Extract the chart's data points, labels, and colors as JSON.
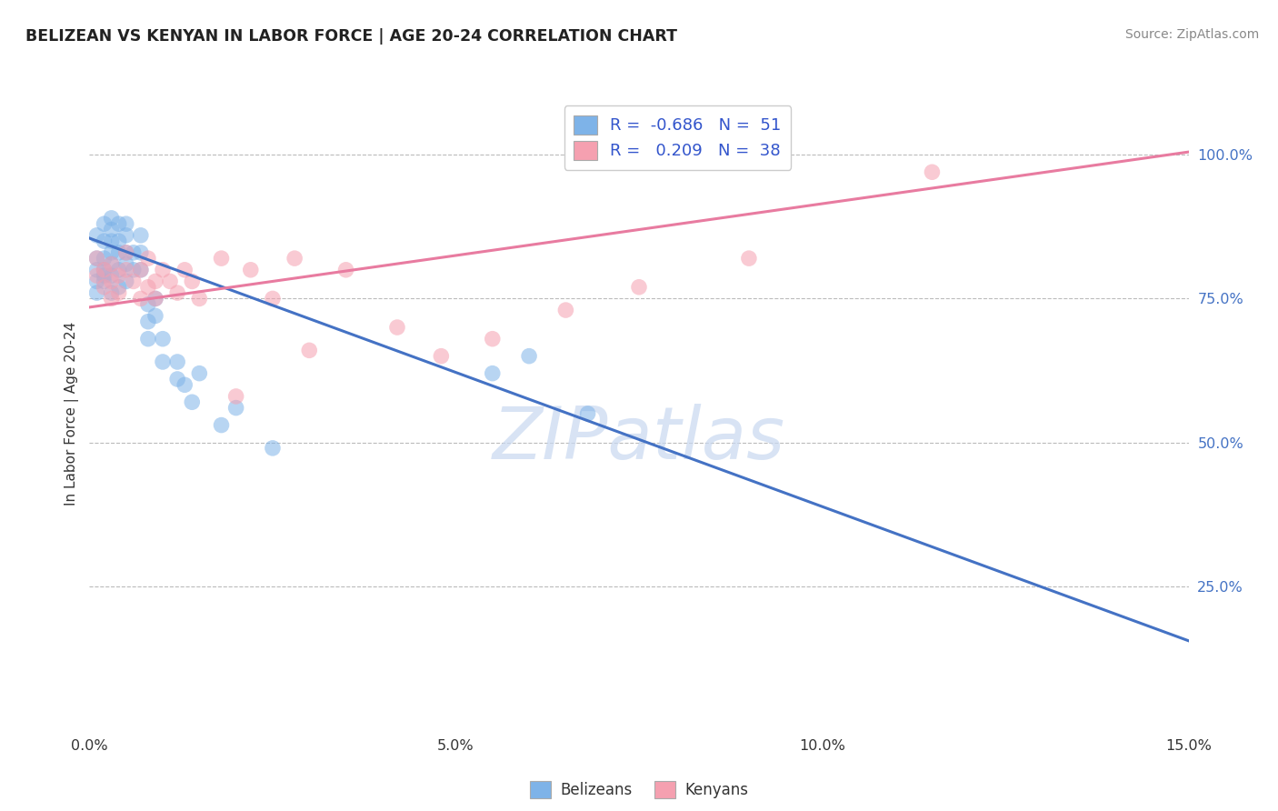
{
  "title": "BELIZEAN VS KENYAN IN LABOR FORCE | AGE 20-24 CORRELATION CHART",
  "source_text": "Source: ZipAtlas.com",
  "ylabel": "In Labor Force | Age 20-24",
  "xlim": [
    0.0,
    0.15
  ],
  "ylim": [
    0.0,
    1.1
  ],
  "xtick_labels": [
    "0.0%",
    "5.0%",
    "10.0%",
    "15.0%"
  ],
  "xtick_vals": [
    0.0,
    0.05,
    0.1,
    0.15
  ],
  "ytick_labels_right": [
    "25.0%",
    "50.0%",
    "75.0%",
    "100.0%"
  ],
  "ytick_vals_right": [
    0.25,
    0.5,
    0.75,
    1.0
  ],
  "watermark": "ZIPatlas",
  "legend_R_blue": "-0.686",
  "legend_N_blue": "51",
  "legend_R_pink": "0.209",
  "legend_N_pink": "38",
  "legend_label_blue": "Belizeans",
  "legend_label_pink": "Kenyans",
  "blue_color": "#7EB3E8",
  "pink_color": "#F5A0B0",
  "blue_line_color": "#4472C4",
  "pink_line_color": "#E87BA0",
  "blue_trend_x0": 0.0,
  "blue_trend_y0": 0.855,
  "blue_trend_x1": 0.15,
  "blue_trend_y1": 0.155,
  "pink_trend_x0": 0.0,
  "pink_trend_y0": 0.735,
  "pink_trend_x1": 0.15,
  "pink_trend_y1": 1.005,
  "blue_dots_x": [
    0.001,
    0.001,
    0.001,
    0.001,
    0.001,
    0.002,
    0.002,
    0.002,
    0.002,
    0.002,
    0.002,
    0.003,
    0.003,
    0.003,
    0.003,
    0.003,
    0.003,
    0.003,
    0.004,
    0.004,
    0.004,
    0.004,
    0.004,
    0.005,
    0.005,
    0.005,
    0.005,
    0.005,
    0.006,
    0.006,
    0.007,
    0.007,
    0.007,
    0.008,
    0.008,
    0.008,
    0.009,
    0.009,
    0.01,
    0.01,
    0.012,
    0.012,
    0.013,
    0.014,
    0.015,
    0.018,
    0.02,
    0.025,
    0.055,
    0.06,
    0.068
  ],
  "blue_dots_y": [
    0.76,
    0.8,
    0.82,
    0.78,
    0.86,
    0.78,
    0.8,
    0.82,
    0.85,
    0.88,
    0.79,
    0.76,
    0.79,
    0.81,
    0.83,
    0.85,
    0.87,
    0.89,
    0.77,
    0.8,
    0.83,
    0.85,
    0.88,
    0.78,
    0.81,
    0.83,
    0.86,
    0.88,
    0.8,
    0.83,
    0.8,
    0.83,
    0.86,
    0.68,
    0.71,
    0.74,
    0.72,
    0.75,
    0.68,
    0.64,
    0.61,
    0.64,
    0.6,
    0.57,
    0.62,
    0.53,
    0.56,
    0.49,
    0.62,
    0.65,
    0.55
  ],
  "pink_dots_x": [
    0.001,
    0.001,
    0.002,
    0.002,
    0.003,
    0.003,
    0.003,
    0.004,
    0.004,
    0.005,
    0.005,
    0.006,
    0.007,
    0.007,
    0.008,
    0.008,
    0.009,
    0.009,
    0.01,
    0.011,
    0.012,
    0.013,
    0.014,
    0.015,
    0.018,
    0.02,
    0.022,
    0.025,
    0.028,
    0.03,
    0.035,
    0.042,
    0.048,
    0.055,
    0.065,
    0.075,
    0.09,
    0.115
  ],
  "pink_dots_y": [
    0.79,
    0.82,
    0.77,
    0.8,
    0.75,
    0.78,
    0.81,
    0.76,
    0.79,
    0.8,
    0.83,
    0.78,
    0.75,
    0.8,
    0.77,
    0.82,
    0.75,
    0.78,
    0.8,
    0.78,
    0.76,
    0.8,
    0.78,
    0.75,
    0.82,
    0.58,
    0.8,
    0.75,
    0.82,
    0.66,
    0.8,
    0.7,
    0.65,
    0.68,
    0.73,
    0.77,
    0.82,
    0.97
  ],
  "background_color": "#FFFFFF",
  "grid_color": "#BBBBBB"
}
